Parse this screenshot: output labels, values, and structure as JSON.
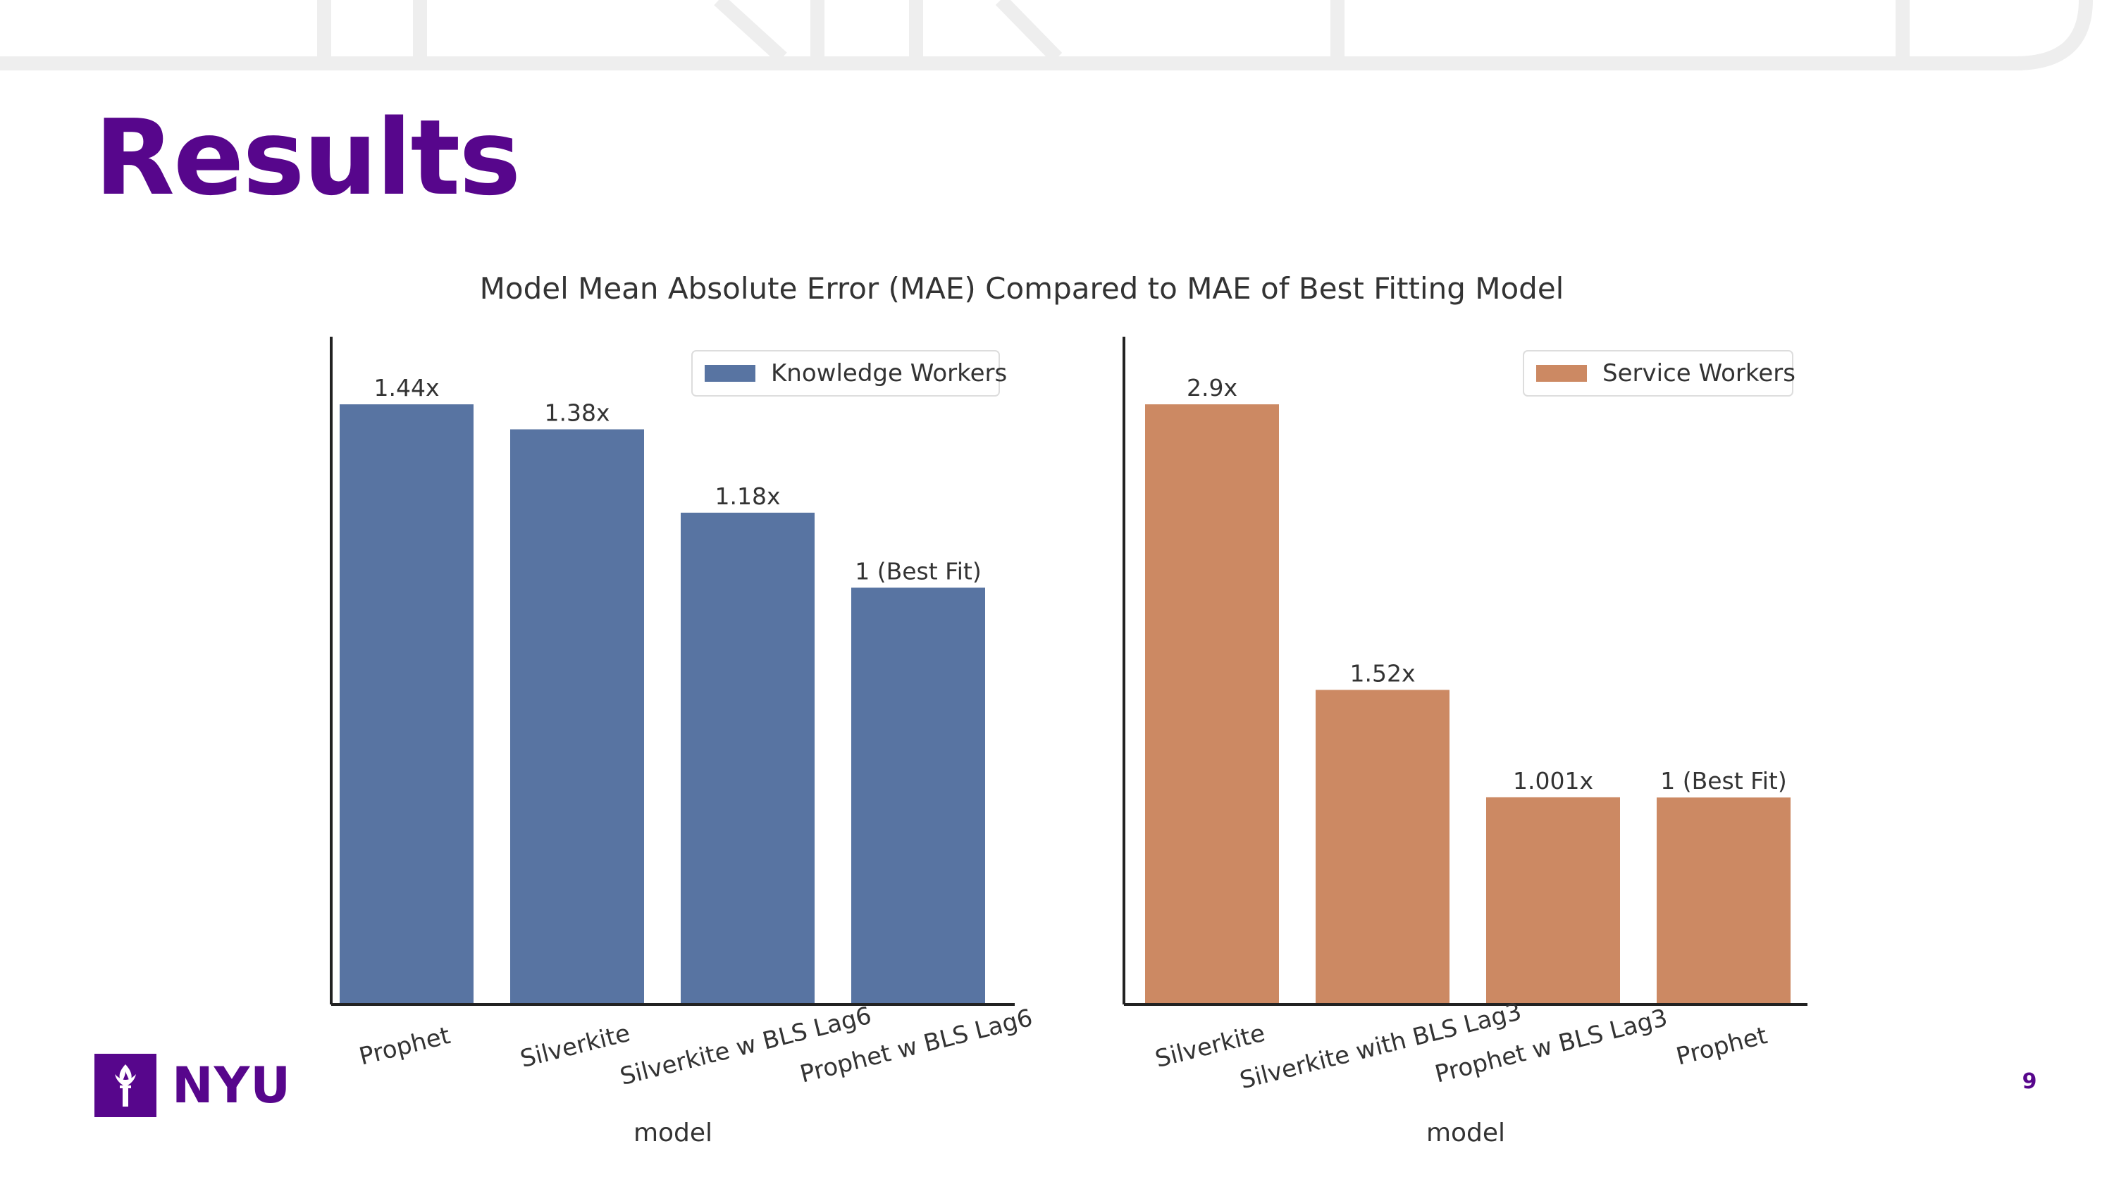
{
  "slide": {
    "title": "Results",
    "page_number": "9",
    "logo_text": "NYU"
  },
  "colors": {
    "brand": "#57068c",
    "knowledge": "#5874a2",
    "service": "#cc8963",
    "axis": "#222222",
    "text": "#333333"
  },
  "chart_data": [
    {
      "type": "bar",
      "title": "Model Mean Absolute Error (MAE) Compared to MAE of Best Fitting Model",
      "legend": "Knowledge Workers",
      "legend_position": "top-right",
      "series": [
        {
          "name": "Knowledge Workers",
          "values": [
            1.44,
            1.38,
            1.18,
            1.0
          ]
        }
      ],
      "categories": [
        "Prophet",
        "Silverkite",
        "Silverkite w BLS Lag6",
        "Prophet w BLS Lag6"
      ],
      "labels": [
        "1.44x",
        "1.38x",
        "1.18x",
        "1 (Best Fit)"
      ],
      "xlabel": "model",
      "ylabel": "",
      "grid": false
    },
    {
      "type": "bar",
      "legend": "Service Workers",
      "legend_position": "top-right",
      "series": [
        {
          "name": "Service Workers",
          "values": [
            2.9,
            1.52,
            1.001,
            1.0
          ]
        }
      ],
      "categories": [
        "Silverkite",
        "Silverkite with BLS Lag3",
        "Prophet w BLS Lag3",
        "Prophet"
      ],
      "labels": [
        "2.9x",
        "1.52x",
        "1.001x",
        "1 (Best Fit)"
      ],
      "xlabel": "model",
      "ylabel": "",
      "grid": false
    }
  ]
}
